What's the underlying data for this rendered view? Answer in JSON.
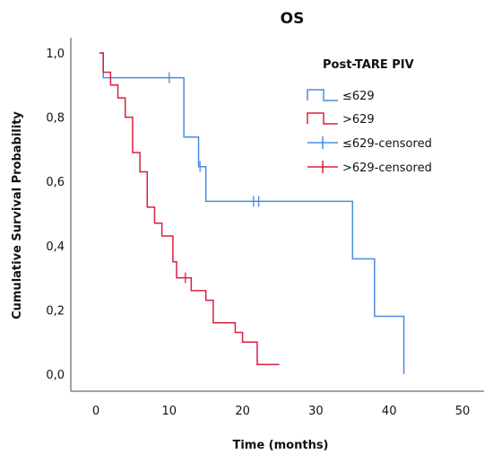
{
  "chart_data": {
    "type": "line",
    "title": "OS",
    "xlabel": "Time (months)",
    "ylabel": "Cumulative Survival Probability",
    "xlim": [
      0,
      50
    ],
    "ylim": [
      0,
      1.0
    ],
    "x_ticks": [
      "0",
      "10",
      "20",
      "30",
      "40",
      "50"
    ],
    "y_ticks": [
      "0,0",
      "0,2",
      "0,4",
      "0,6",
      "0,8",
      "1,0"
    ],
    "grid": false,
    "legend": {
      "title": "Post-TARE PIV",
      "placement": "top-right",
      "entries": [
        "≤629",
        ">629",
        "≤629-censored",
        ">629-censored"
      ]
    },
    "series": [
      {
        "name": "≤629",
        "color": "#4a8be0",
        "x": [
          0.5,
          1.0,
          12.0,
          14.0,
          15.0,
          35.0,
          38.0,
          42.0
        ],
        "y": [
          1.0,
          0.923,
          0.738,
          0.646,
          0.538,
          0.359,
          0.18,
          0.0
        ],
        "end_x": 42.0,
        "censored": [
          {
            "x": 10.0,
            "y": 0.923
          },
          {
            "x": 14.2,
            "y": 0.646
          },
          {
            "x": 21.5,
            "y": 0.538
          },
          {
            "x": 22.2,
            "y": 0.538
          }
        ]
      },
      {
        "name": ">629",
        "color": "#d8203c",
        "x": [
          0.5,
          1.0,
          2.0,
          3.0,
          4.0,
          5.0,
          6.0,
          7.0,
          8.0,
          9.0,
          10.5,
          11.0,
          13.0,
          15.0,
          16.0,
          19.0,
          20.0,
          22.0
        ],
        "y": [
          1.0,
          0.94,
          0.9,
          0.86,
          0.8,
          0.69,
          0.63,
          0.52,
          0.47,
          0.43,
          0.35,
          0.3,
          0.26,
          0.23,
          0.16,
          0.13,
          0.1,
          0.03
        ],
        "end_x": 25.0,
        "censored": [
          {
            "x": 12.2,
            "y": 0.3
          }
        ]
      }
    ]
  }
}
